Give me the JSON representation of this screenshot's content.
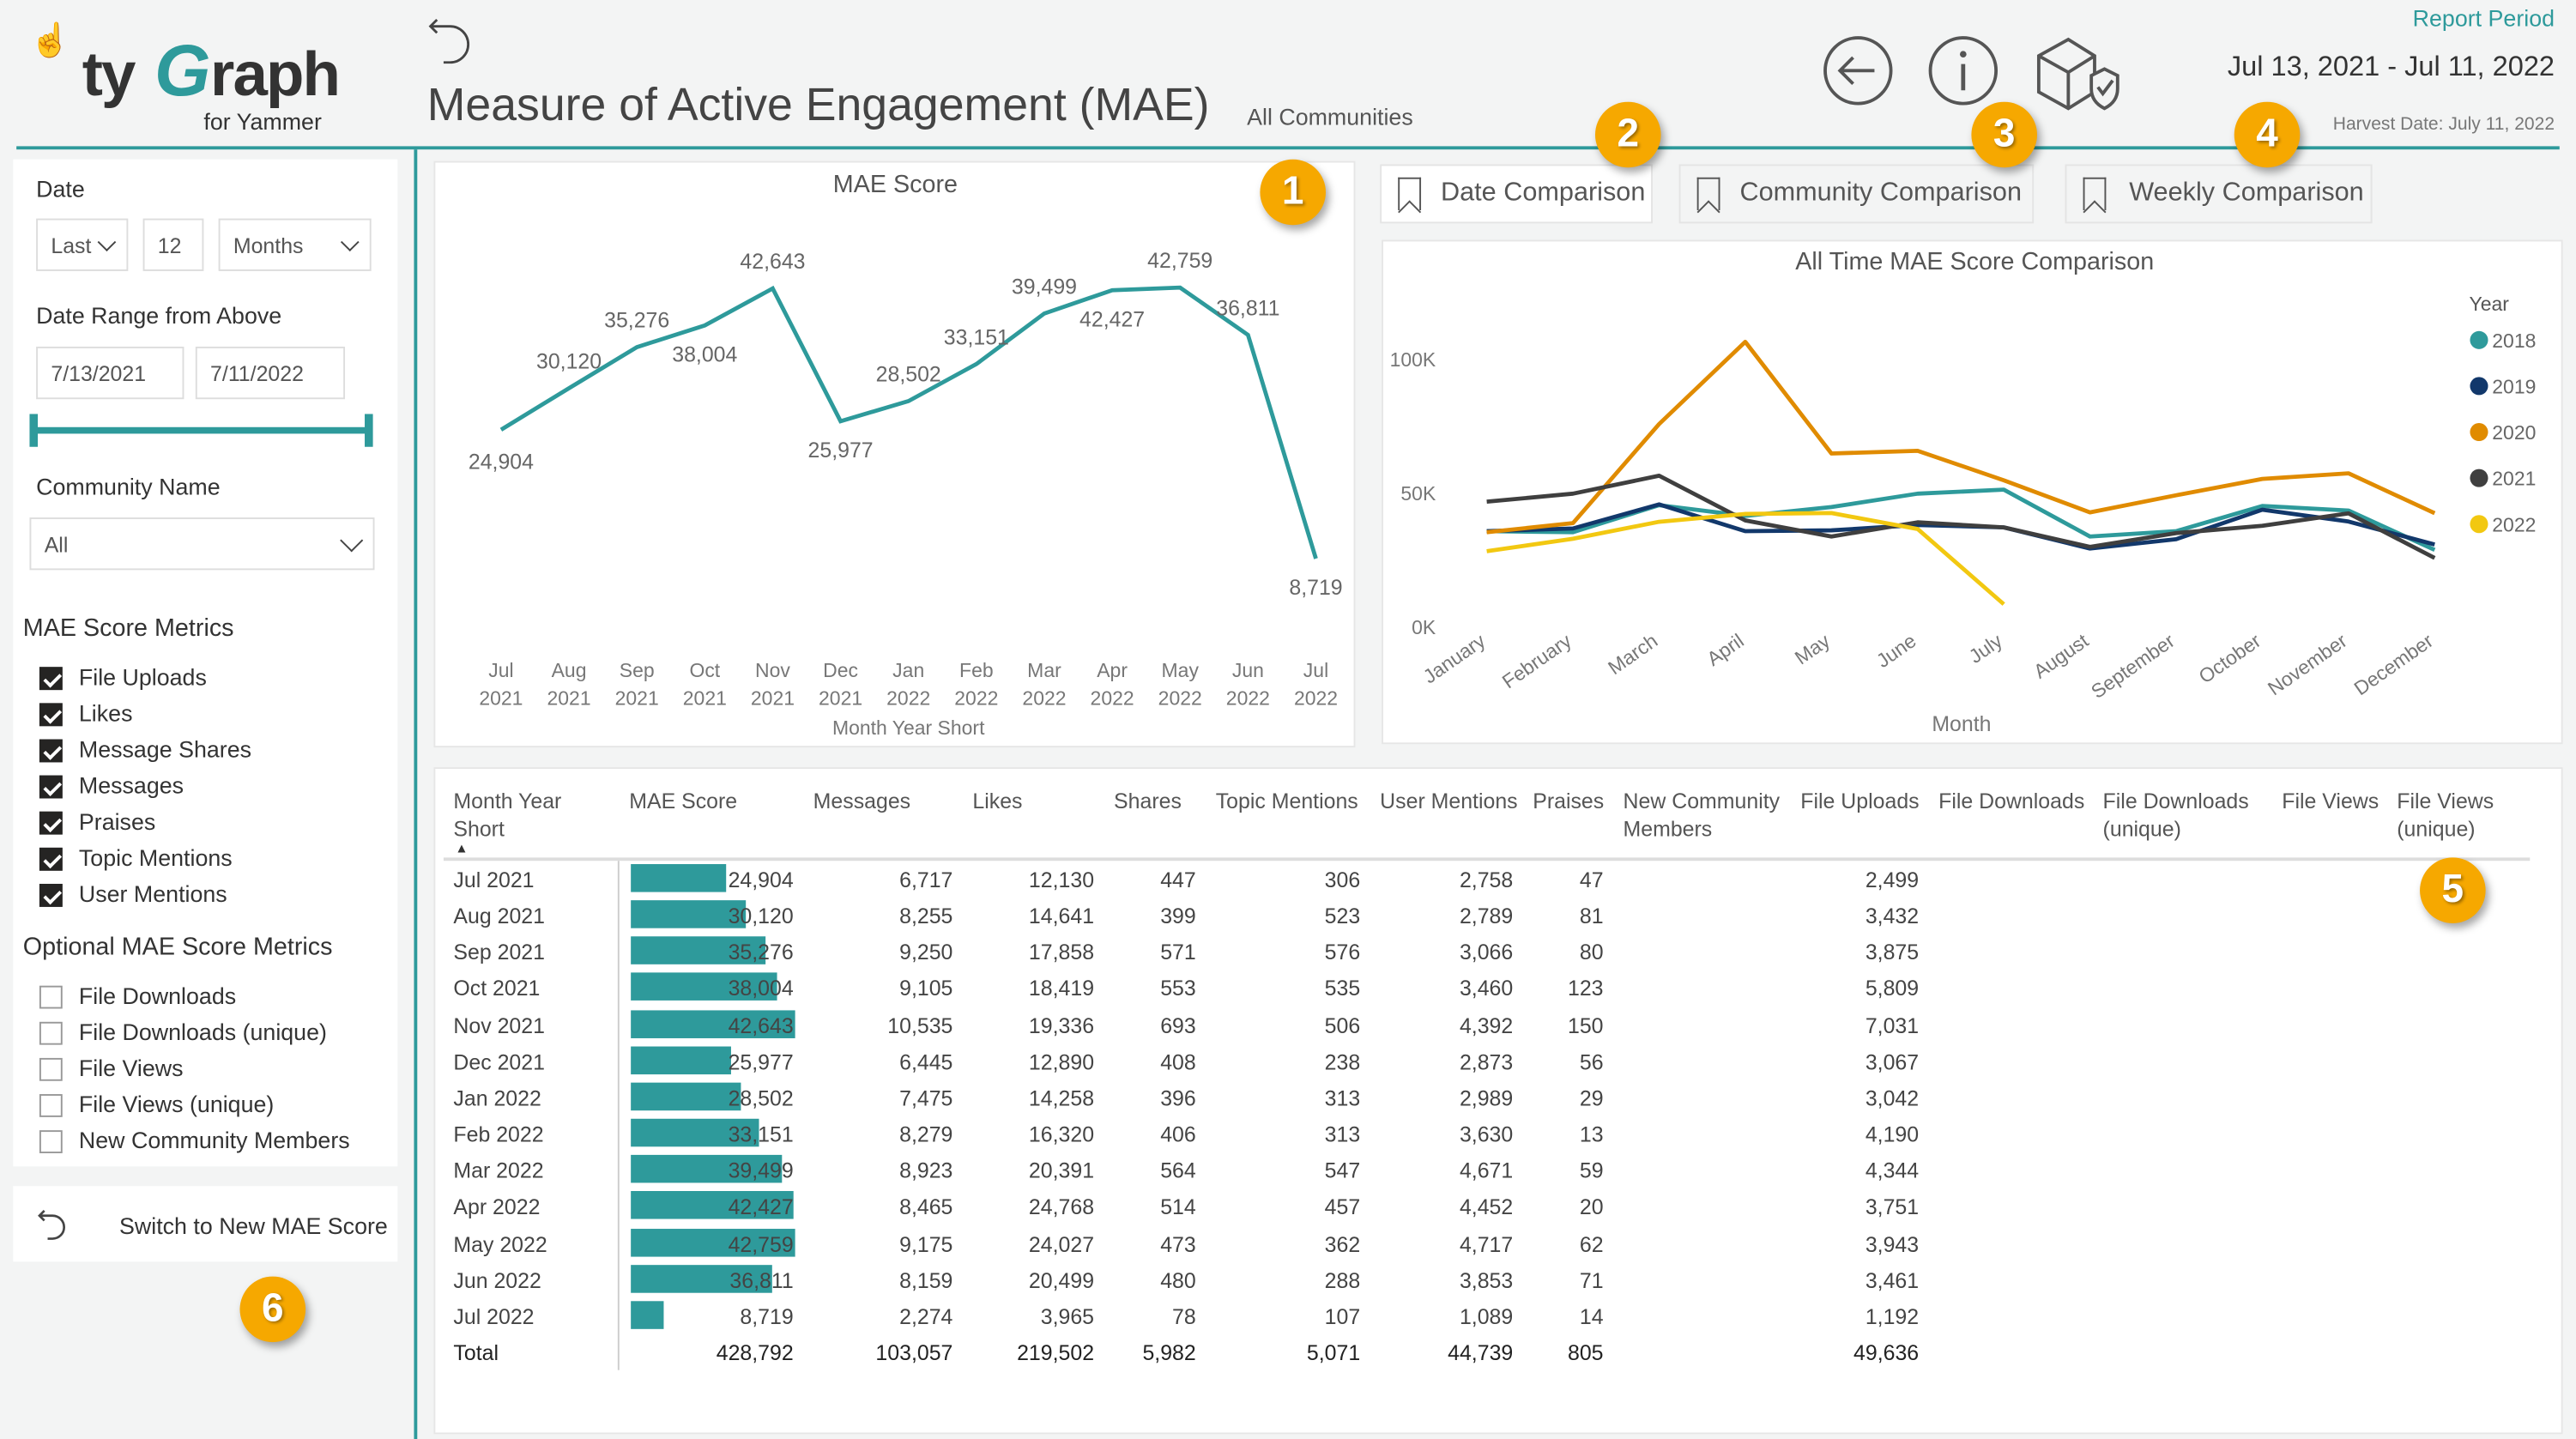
{
  "header": {
    "logo_main": "tyGraph",
    "logo_sub": "for Yammer",
    "title": "Measure of Active Engagement (MAE)",
    "subtitle": "All Communities",
    "report_period_label": "Report Period",
    "report_period": "Jul 13, 2021 - Jul 11, 2022",
    "harvest_date": "Harvest Date: July 11, 2022",
    "icons": [
      "back-arrow-icon",
      "back-circle-icon",
      "info-icon",
      "package-shield-icon"
    ]
  },
  "filters": {
    "date_label": "Date",
    "relative_mode": "Last",
    "relative_count": "12",
    "relative_unit": "Months",
    "range_label": "Date Range from Above",
    "range_start": "7/13/2021",
    "range_end": "7/11/2022",
    "slider_range_fraction": [
      0,
      1
    ],
    "community_label": "Community Name",
    "community_value": "All"
  },
  "metrics": {
    "title": "MAE Score Metrics",
    "items": [
      {
        "label": "File Uploads",
        "checked": true
      },
      {
        "label": "Likes",
        "checked": true
      },
      {
        "label": "Message Shares",
        "checked": true
      },
      {
        "label": "Messages",
        "checked": true
      },
      {
        "label": "Praises",
        "checked": true
      },
      {
        "label": "Topic Mentions",
        "checked": true
      },
      {
        "label": "User Mentions",
        "checked": true
      }
    ]
  },
  "optional_metrics": {
    "title": "Optional MAE Score Metrics",
    "items": [
      {
        "label": "File Downloads",
        "checked": false
      },
      {
        "label": "File Downloads (unique)",
        "checked": false
      },
      {
        "label": "File Views",
        "checked": false
      },
      {
        "label": "File Views (unique)",
        "checked": false
      },
      {
        "label": "New Community Members",
        "checked": false
      }
    ]
  },
  "switch_button": "Switch to New MAE Score",
  "badges": [
    "1",
    "2",
    "3",
    "4",
    "5",
    "6"
  ],
  "tabs": [
    {
      "label": "Date Comparison",
      "selected": true
    },
    {
      "label": "Community Comparison",
      "selected": false
    },
    {
      "label": "Weekly Comparison",
      "selected": false
    }
  ],
  "colors": {
    "accent": "#2e9a9b",
    "badge": "#f6a800"
  },
  "chart_data": [
    {
      "type": "line",
      "title": "MAE Score",
      "xlabel": "Month Year Short",
      "categories": [
        [
          "Jul",
          "2021"
        ],
        [
          "Aug",
          "2021"
        ],
        [
          "Sep",
          "2021"
        ],
        [
          "Oct",
          "2021"
        ],
        [
          "Nov",
          "2021"
        ],
        [
          "Dec",
          "2021"
        ],
        [
          "Jan",
          "2022"
        ],
        [
          "Feb",
          "2022"
        ],
        [
          "Mar",
          "2022"
        ],
        [
          "Apr",
          "2022"
        ],
        [
          "May",
          "2022"
        ],
        [
          "Jun",
          "2022"
        ],
        [
          "Jul",
          "2022"
        ]
      ],
      "values": [
        24904,
        30120,
        35276,
        38004,
        42643,
        25977,
        28502,
        33151,
        39499,
        42427,
        42759,
        36811,
        8719
      ],
      "labels": [
        "24,904",
        "30,120",
        "35,276",
        "38,004",
        "42,643",
        "25,977",
        "28,502",
        "33,151",
        "39,499",
        "42,427",
        "42,759",
        "36,811",
        "8,719"
      ],
      "color": "#2e9a9b"
    },
    {
      "type": "line",
      "title": "All Time MAE Score Comparison",
      "xlabel": "Month",
      "legend_title": "Year",
      "legend_position": "right",
      "ylim": [
        0,
        110000
      ],
      "yticks": [
        {
          "v": 0,
          "label": "0K"
        },
        {
          "v": 50000,
          "label": "50K"
        },
        {
          "v": 100000,
          "label": "100K"
        }
      ],
      "categories": [
        "January",
        "February",
        "March",
        "April",
        "May",
        "June",
        "July",
        "August",
        "September",
        "October",
        "November",
        "December"
      ],
      "series": [
        {
          "name": "2018",
          "color": "#2e9a9b",
          "values": [
            36000,
            35600,
            45700,
            41700,
            45000,
            50000,
            51500,
            34000,
            36000,
            45400,
            43700,
            29000
          ]
        },
        {
          "name": "2019",
          "color": "#12386b",
          "values": [
            36000,
            37000,
            46000,
            36000,
            36300,
            38300,
            37400,
            29500,
            33000,
            44000,
            39600,
            31000
          ]
        },
        {
          "name": "2020",
          "color": "#e08b00",
          "values": [
            35600,
            39000,
            76000,
            106700,
            65000,
            66000,
            55000,
            43000,
            49400,
            55500,
            57600,
            42700
          ]
        },
        {
          "name": "2021",
          "color": "#3f3f3f",
          "values": [
            47000,
            50000,
            56700,
            40000,
            34000,
            39300,
            37400,
            30120,
            35276,
            38004,
            42643,
            25977
          ]
        },
        {
          "name": "2022",
          "color": "#f2c811",
          "values": [
            28502,
            33151,
            39499,
            42427,
            42759,
            36811,
            8719,
            null,
            null,
            null,
            null,
            null
          ]
        }
      ]
    }
  ],
  "table": {
    "columns": [
      "Month Year Short",
      "MAE Score",
      "Messages",
      "Likes",
      "Shares",
      "Topic Mentions",
      "User Mentions",
      "Praises",
      "New Community Members",
      "File Uploads",
      "File Downloads",
      "File Downloads (unique)",
      "File Views",
      "File Views (unique)"
    ],
    "sort_indicator": "▲",
    "bar_max": 42759,
    "rows": [
      {
        "month": "Jul 2021",
        "mae": 24904,
        "mae_label": "24,904",
        "cells": [
          "6,717",
          "12,130",
          "447",
          "306",
          "2,758",
          "47",
          "",
          "2,499"
        ]
      },
      {
        "month": "Aug 2021",
        "mae": 30120,
        "mae_label": "30,120",
        "cells": [
          "8,255",
          "14,641",
          "399",
          "523",
          "2,789",
          "81",
          "",
          "3,432"
        ]
      },
      {
        "month": "Sep 2021",
        "mae": 35276,
        "mae_label": "35,276",
        "cells": [
          "9,250",
          "17,858",
          "571",
          "576",
          "3,066",
          "80",
          "",
          "3,875"
        ]
      },
      {
        "month": "Oct 2021",
        "mae": 38004,
        "mae_label": "38,004",
        "cells": [
          "9,105",
          "18,419",
          "553",
          "535",
          "3,460",
          "123",
          "",
          "5,809"
        ]
      },
      {
        "month": "Nov 2021",
        "mae": 42643,
        "mae_label": "42,643",
        "cells": [
          "10,535",
          "19,336",
          "693",
          "506",
          "4,392",
          "150",
          "",
          "7,031"
        ]
      },
      {
        "month": "Dec 2021",
        "mae": 25977,
        "mae_label": "25,977",
        "cells": [
          "6,445",
          "12,890",
          "408",
          "238",
          "2,873",
          "56",
          "",
          "3,067"
        ]
      },
      {
        "month": "Jan 2022",
        "mae": 28502,
        "mae_label": "28,502",
        "cells": [
          "7,475",
          "14,258",
          "396",
          "313",
          "2,989",
          "29",
          "",
          "3,042"
        ]
      },
      {
        "month": "Feb 2022",
        "mae": 33151,
        "mae_label": "33,151",
        "cells": [
          "8,279",
          "16,320",
          "406",
          "313",
          "3,630",
          "13",
          "",
          "4,190"
        ]
      },
      {
        "month": "Mar 2022",
        "mae": 39499,
        "mae_label": "39,499",
        "cells": [
          "8,923",
          "20,391",
          "564",
          "547",
          "4,671",
          "59",
          "",
          "4,344"
        ]
      },
      {
        "month": "Apr 2022",
        "mae": 42427,
        "mae_label": "42,427",
        "cells": [
          "8,465",
          "24,768",
          "514",
          "457",
          "4,452",
          "20",
          "",
          "3,751"
        ]
      },
      {
        "month": "May 2022",
        "mae": 42759,
        "mae_label": "42,759",
        "cells": [
          "9,175",
          "24,027",
          "473",
          "362",
          "4,717",
          "62",
          "",
          "3,943"
        ]
      },
      {
        "month": "Jun 2022",
        "mae": 36811,
        "mae_label": "36,811",
        "cells": [
          "8,159",
          "20,499",
          "480",
          "288",
          "3,853",
          "71",
          "",
          "3,461"
        ]
      },
      {
        "month": "Jul 2022",
        "mae": 8719,
        "mae_label": "8,719",
        "cells": [
          "2,274",
          "3,965",
          "78",
          "107",
          "1,089",
          "14",
          "",
          "1,192"
        ]
      }
    ],
    "total": {
      "label": "Total",
      "mae_label": "428,792",
      "cells": [
        "103,057",
        "219,502",
        "5,982",
        "5,071",
        "44,739",
        "805",
        "",
        "49,636"
      ]
    }
  }
}
